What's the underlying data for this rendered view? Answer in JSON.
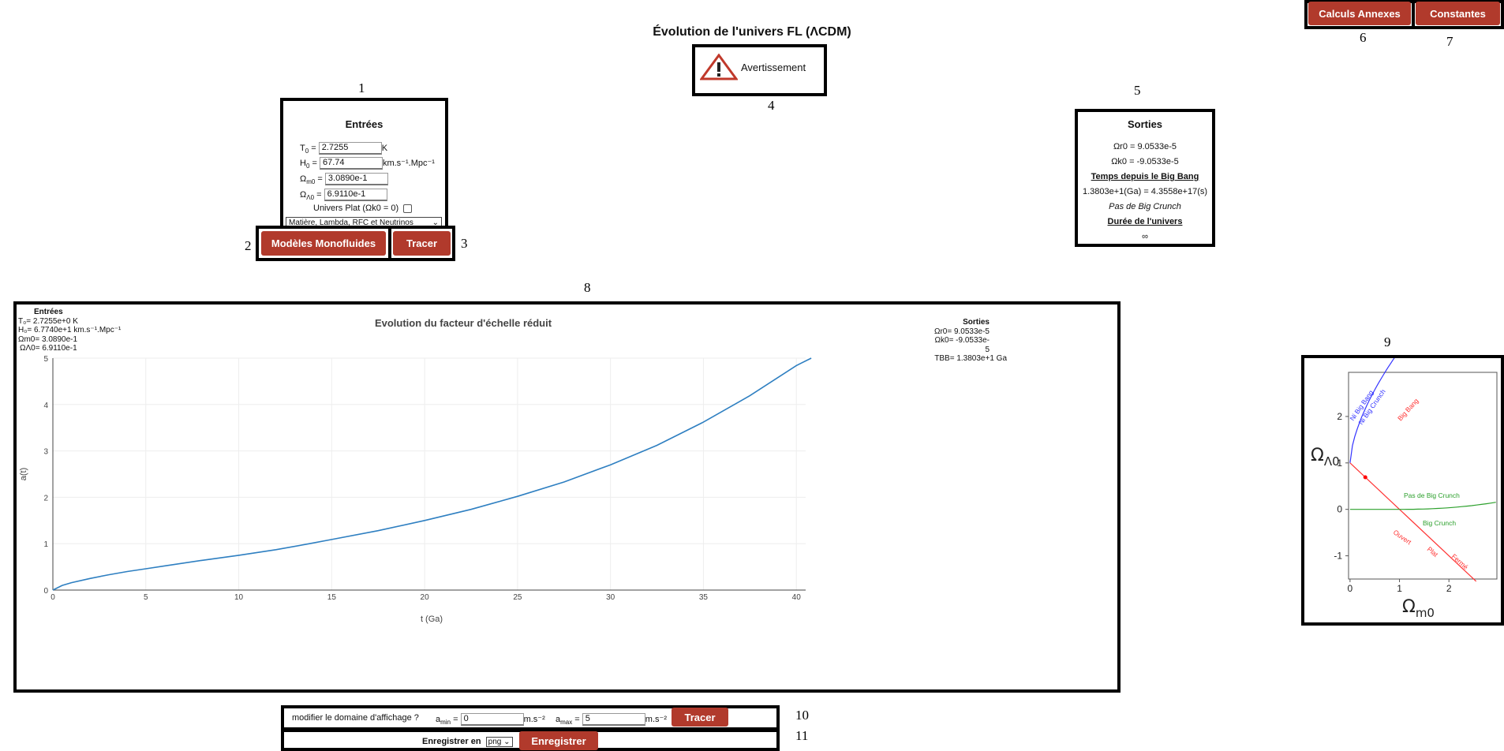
{
  "title": "Évolution de l'univers FL (ΛCDM)",
  "colors": {
    "accent": "#b13a2c",
    "curve": "#2e7fc1",
    "blue_curve": "#3333ff",
    "red_line": "#ff3333",
    "green_curve": "#2ca02c"
  },
  "labels": {
    "n1": "1",
    "n2": "2",
    "n3": "3",
    "n4": "4",
    "n5": "5",
    "n6": "6",
    "n7": "7",
    "n8": "8",
    "n9": "9",
    "n10": "10",
    "n11": "11"
  },
  "top_buttons": {
    "annexes": "Calculs Annexes",
    "constants": "Constantes"
  },
  "warning": {
    "icon": "warning-triangle-icon",
    "text": "Avertissement"
  },
  "inputs": {
    "heading": "Entrées",
    "t0_label": "T",
    "t0_sub": "0",
    "t0_eq": " = ",
    "t0_value": "2.7255",
    "t0_unit": "K",
    "h0_label": "H",
    "h0_sub": "0",
    "h0_eq": " = ",
    "h0_value": "67.74",
    "h0_unit": "km.s⁻¹.Mpc⁻¹",
    "om_label": "Ω",
    "om_sub": "m0",
    "om_eq": " = ",
    "om_value": "3.0890e-1",
    "ol_label": "Ω",
    "ol_sub": "Λ0",
    "ol_eq": " = ",
    "ol_value": "6.9110e-1",
    "flat_label": "Univers Plat (Ωk0 = 0)",
    "select_value": "Matière, Lambda, RFC et Neutrinos",
    "monofluid_button": "Modèles Monofluides",
    "trace_button": "Tracer"
  },
  "outputs": {
    "heading": "Sorties",
    "or_line": "Ωr0 = 9.0533e-5",
    "ok_line": "Ωk0 = -9.0533e-5",
    "time_heading": "Temps depuis le Big Bang",
    "time_value": "1.3803e+1(Ga) = 4.3558e+17(s)",
    "crunch": "Pas de Big Crunch",
    "duration_heading": "Durée de l'univers",
    "duration_value": "∞"
  },
  "plot_inputs": {
    "heading": "Entrées",
    "t0": "T₀= 2.7255e+0 K",
    "h0": "H₀= 6.7740e+1 km.s⁻¹.Mpc⁻¹",
    "om": "Ωm0= 3.0890e-1",
    "ol": "ΩΛ0= 6.9110e-1"
  },
  "plot_outputs": {
    "heading": "Sorties",
    "or": "Ωr0= 9.0533e-5",
    "ok": "Ωk0= -9.0533e-5",
    "tbb": "TBB= 1.3803e+1 Ga"
  },
  "chart_data": {
    "type": "line",
    "title": "Evolution du facteur d'échelle réduit",
    "xlabel": "t (Ga)",
    "ylabel": "a(t)",
    "xlim": [
      0,
      40.5
    ],
    "ylim": [
      0,
      5
    ],
    "x_ticks": [
      0,
      5,
      10,
      15,
      20,
      25,
      30,
      35,
      40
    ],
    "y_ticks": [
      0,
      1,
      2,
      3,
      4,
      5
    ],
    "grid": true,
    "series": [
      {
        "x": [
          0,
          0.5,
          1,
          2,
          3,
          4,
          5,
          6,
          8,
          10,
          12,
          13.8,
          15,
          17.5,
          20,
          22.5,
          25,
          27.5,
          30,
          32.5,
          35,
          37.5,
          40,
          40.8
        ],
        "y": [
          0,
          0.1,
          0.16,
          0.25,
          0.33,
          0.4,
          0.46,
          0.52,
          0.64,
          0.75,
          0.87,
          1.0,
          1.09,
          1.28,
          1.5,
          1.74,
          2.02,
          2.33,
          2.7,
          3.12,
          3.62,
          4.19,
          4.84,
          5.0
        ]
      }
    ]
  },
  "diagram": {
    "ylabel": "ΩΛ0",
    "xlabel": "Ωm0",
    "x_ticks": [
      "0",
      "1",
      "2"
    ],
    "y_ticks": [
      "2",
      "1",
      "0",
      "-1"
    ],
    "labels": {
      "ni_bb": "Ni Big Bang",
      "ni_bc": "Ni Big Crunch",
      "big_bang": "Big Bang",
      "pas_bc": "Pas de Big Crunch",
      "big_crunch": "Big Crunch",
      "ouvert": "Ouvert",
      "plat": "Plat",
      "ferme": "Fermé"
    },
    "point": {
      "om": 0.3089,
      "ol": 0.6911
    }
  },
  "domain": {
    "question": "modifier le domaine d'affichage ?",
    "amin_label": "a",
    "amin_sub": "min",
    "amin_eq": " = ",
    "amin_value": "0",
    "amin_unit": "m.s⁻²",
    "amax_label": "a",
    "amax_sub": "max",
    "amax_eq": " = ",
    "amax_value": "5",
    "amax_unit": "m.s⁻²",
    "trace_button": "Tracer"
  },
  "save": {
    "label": "Enregistrer en",
    "format": "png",
    "button": "Enregistrer"
  }
}
